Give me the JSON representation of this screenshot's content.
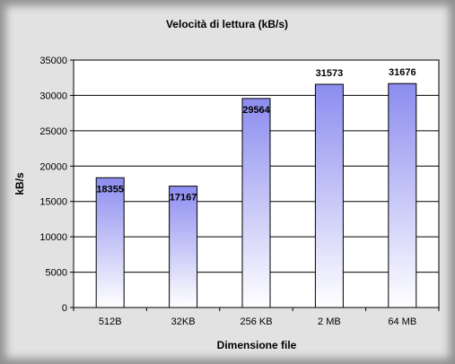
{
  "chart_data": {
    "type": "bar",
    "title": "Velocità di lettura (kB/s)",
    "xlabel": "Dimensione file",
    "ylabel": "kB/s",
    "categories": [
      "512B",
      "32KB",
      "256 KB",
      "2 MB",
      "64 MB"
    ],
    "values": [
      18355,
      17167,
      29564,
      31573,
      31676
    ],
    "data_labels": [
      "18355",
      "17167",
      "29564",
      "31573",
      "31676"
    ],
    "ylim": [
      0,
      35000
    ],
    "yticks": [
      0,
      5000,
      10000,
      15000,
      20000,
      25000,
      30000,
      35000
    ],
    "ytick_labels": [
      "0",
      "5000",
      "10000",
      "15000",
      "20000",
      "25000",
      "30000",
      "35000"
    ],
    "grid": true,
    "legend": "none",
    "colors": {
      "bar_top": "#8c8cf0",
      "bar_bottom": "#ffffff",
      "bar_stroke": "#000000",
      "plot_bg": "#ffffff",
      "grid": "#000000",
      "frame_bg": "#e2e2e2"
    }
  }
}
